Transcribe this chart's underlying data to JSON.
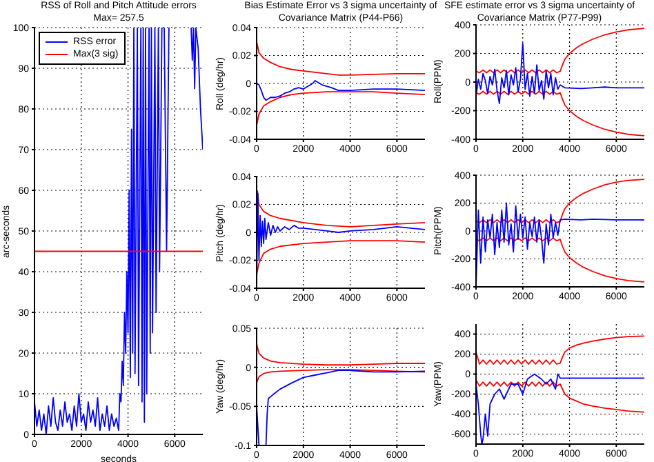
{
  "chart_data": [
    {
      "type": "line",
      "title": "RSS of Roll and Pitch Attitude errors",
      "subtitle": "Max= 257.5",
      "xlabel": "seconds",
      "ylabel": "arc-seconds",
      "xlim": [
        0,
        7200
      ],
      "xticks": [
        0,
        2000,
        4000,
        6000
      ],
      "ylim": [
        0,
        100
      ],
      "yticks": [
        0,
        10,
        20,
        30,
        40,
        50,
        60,
        70,
        80,
        90,
        100
      ],
      "grid": true,
      "legend": "top left",
      "series": [
        {
          "name": "RSS error",
          "color": "#0000ff",
          "x": [
            0,
            100,
            200,
            300,
            400,
            500,
            600,
            700,
            800,
            900,
            1000,
            1100,
            1200,
            1300,
            1400,
            1500,
            1600,
            1700,
            1800,
            1900,
            2000,
            2100,
            2200,
            2300,
            2400,
            2500,
            2600,
            2700,
            2800,
            2900,
            3000,
            3100,
            3200,
            3300,
            3400,
            3500,
            3600,
            3650,
            3700,
            3750,
            3800,
            3850,
            3900,
            3950,
            4000,
            4050,
            4100,
            4150,
            4200,
            4250,
            4300,
            4400,
            4450,
            4550,
            4600,
            4650,
            4700,
            4750,
            4800,
            4900,
            4950,
            5000,
            5050,
            5150,
            5200,
            5300,
            5350,
            5450,
            5550,
            5650,
            5750,
            5800,
            6650,
            6700,
            6750,
            6800,
            6850,
            6900,
            7000,
            7100,
            7200
          ],
          "values": [
            8,
            2,
            6,
            1,
            5,
            0,
            7,
            2,
            9,
            3,
            1,
            6,
            2,
            8,
            3,
            5,
            1,
            7,
            2,
            10,
            3,
            5,
            1,
            8,
            3,
            6,
            2,
            9,
            1,
            5,
            2,
            7,
            1,
            5,
            2,
            4,
            1,
            10,
            8,
            18,
            12,
            30,
            20,
            40,
            25,
            60,
            14,
            75,
            20,
            100,
            15,
            100,
            12,
            100,
            8,
            100,
            3,
            100,
            10,
            100,
            20,
            100,
            25,
            100,
            30,
            100,
            40,
            100,
            100,
            45,
            100,
            100,
            null,
            100,
            92,
            100,
            85,
            100,
            95,
            80,
            70
          ]
        },
        {
          "name": "Max(3 sig)",
          "color": "#ff0000",
          "x": [
            0,
            7200
          ],
          "values": [
            45,
            45
          ]
        }
      ]
    },
    {
      "type": "line",
      "title": "Bias Estimate Error vs 3 sigma uncertainty of Covariance Matrix (P44-P66)",
      "ylabel": "Roll (deg/hr)",
      "xlim": [
        0,
        7200
      ],
      "xticks": [
        0,
        2000,
        4000,
        6000
      ],
      "ylim": [
        -0.04,
        0.04
      ],
      "yticks": [
        -0.04,
        -0.02,
        0,
        0.02,
        0.04
      ],
      "grid": true,
      "series": [
        {
          "color": "#ff0000",
          "x": [
            0,
            100,
            300,
            600,
            1000,
            1500,
            2000,
            2500,
            3000,
            3500,
            4000,
            5000,
            6000,
            7200
          ],
          "values": [
            0.03,
            0.022,
            0.018,
            0.015,
            0.012,
            0.01,
            0.009,
            0.008,
            0.007,
            0.006,
            0.006,
            0.0065,
            0.007,
            0.007
          ]
        },
        {
          "color": "#ff0000",
          "x": [
            0,
            100,
            300,
            600,
            1000,
            1500,
            2000,
            3000,
            4000,
            5000,
            6000,
            7200
          ],
          "values": [
            -0.03,
            -0.022,
            -0.016,
            -0.013,
            -0.01,
            -0.008,
            -0.007,
            -0.006,
            -0.006,
            -0.006,
            -0.007,
            -0.008
          ]
        },
        {
          "color": "#0000ff",
          "x": [
            0,
            100,
            200,
            300,
            400,
            500,
            600,
            800,
            1000,
            1200,
            1400,
            1600,
            1800,
            2000,
            2200,
            2400,
            2500,
            2600,
            2800,
            3000,
            3200,
            3500,
            4000,
            5000,
            6000,
            7200
          ],
          "values": [
            0,
            -0.001,
            -0.005,
            -0.01,
            -0.012,
            -0.011,
            -0.01,
            -0.01,
            -0.009,
            -0.007,
            -0.006,
            -0.004,
            -0.003,
            -0.004,
            -0.002,
            0,
            0.002,
            0.001,
            -0.001,
            -0.002,
            -0.003,
            -0.005,
            -0.005,
            -0.004,
            -0.004,
            -0.005
          ]
        }
      ]
    },
    {
      "type": "line",
      "ylabel": "Pitch (deg/hr)",
      "xlim": [
        0,
        7200
      ],
      "xticks": [
        0,
        2000,
        4000,
        6000
      ],
      "ylim": [
        -0.04,
        0.04
      ],
      "yticks": [
        -0.04,
        -0.02,
        0,
        0.02,
        0.04
      ],
      "grid": true,
      "series": [
        {
          "color": "#ff0000",
          "x": [
            30,
            100,
            300,
            600,
            1000,
            2000,
            3000,
            4000,
            5000,
            6000,
            7200
          ],
          "values": [
            0.03,
            0.02,
            0.015,
            0.012,
            0.01,
            0.007,
            0.005,
            0.004,
            0.005,
            0.006,
            0.007
          ]
        },
        {
          "color": "#ff0000",
          "x": [
            0,
            100,
            300,
            600,
            1000,
            2000,
            3000,
            4000,
            5000,
            6000,
            7200
          ],
          "values": [
            -0.03,
            -0.022,
            -0.015,
            -0.012,
            -0.01,
            -0.008,
            -0.007,
            -0.006,
            -0.006,
            -0.006,
            -0.007
          ]
        },
        {
          "color": "#0000ff",
          "x": [
            0,
            50,
            100,
            150,
            200,
            250,
            300,
            350,
            400,
            500,
            600,
            700,
            800,
            900,
            1000,
            1200,
            1400,
            1600,
            1800,
            2000,
            2500,
            3000,
            3500,
            4000,
            5000,
            6000,
            7200
          ],
          "values": [
            -0.04,
            0.028,
            -0.02,
            0.012,
            -0.01,
            0.008,
            -0.008,
            0.01,
            -0.005,
            0.007,
            -0.002,
            0.005,
            0,
            0.004,
            0.001,
            0.004,
            0.002,
            0.005,
            0.003,
            0.003,
            0.002,
            0.001,
            0,
            0.001,
            0.002,
            0.004,
            0.002
          ]
        }
      ]
    },
    {
      "type": "line",
      "ylabel": "Yaw (deg/hr)",
      "xlim": [
        0,
        7200
      ],
      "xticks": [
        0,
        2000,
        4000,
        6000
      ],
      "ylim": [
        -0.1,
        0.05
      ],
      "yticks": [
        -0.1,
        -0.05,
        0,
        0.05
      ],
      "grid": true,
      "series": [
        {
          "color": "#ff0000",
          "x": [
            0,
            100,
            300,
            600,
            1000,
            2000,
            3000,
            4000,
            5000,
            6000,
            7200
          ],
          "values": [
            0.03,
            0.018,
            0.012,
            0.008,
            0.006,
            0.004,
            0.003,
            0.003,
            0.004,
            0.005,
            0.005
          ]
        },
        {
          "color": "#ff0000",
          "x": [
            0,
            100,
            300,
            600,
            1000,
            2000,
            3000,
            4000,
            5000,
            6000,
            7200
          ],
          "values": [
            -0.02,
            -0.012,
            -0.008,
            -0.006,
            -0.005,
            -0.004,
            -0.003,
            -0.003,
            -0.004,
            -0.005,
            -0.006
          ]
        },
        {
          "color": "#0000ff",
          "x": [
            0,
            100,
            300,
            400,
            450,
            500,
            700,
            1000,
            1500,
            2000,
            2500,
            3000,
            3500,
            4000,
            5000,
            6000,
            7200
          ],
          "values": [
            -0.05,
            -0.1,
            -0.1,
            -0.1,
            -0.06,
            -0.04,
            -0.035,
            -0.028,
            -0.02,
            -0.013,
            -0.01,
            -0.007,
            -0.004,
            -0.004,
            -0.006,
            -0.006,
            -0.005
          ]
        }
      ]
    },
    {
      "type": "line",
      "title": "SFE estimate error vs 3 sigma uncertainty of Covariance Matrix (P77-P99)",
      "ylabel": "Roll(PPM)",
      "xlim": [
        0,
        7200
      ],
      "xticks": [
        0,
        2000,
        4000,
        6000
      ],
      "ylim": [
        -400,
        400
      ],
      "yticks": [
        -400,
        -200,
        0,
        200,
        400
      ],
      "grid": true,
      "series": [
        {
          "color": "#ff0000",
          "x": [
            0,
            150,
            300,
            450,
            600,
            750,
            900,
            1050,
            1200,
            1350,
            1500,
            1650,
            1800,
            1950,
            2100,
            2250,
            2400,
            2550,
            2700,
            2850,
            3000,
            3150,
            3300,
            3450,
            3600,
            3700,
            3800,
            4000,
            4300,
            4600,
            5000,
            5500,
            6000,
            6500,
            7200
          ],
          "values": [
            75,
            65,
            85,
            65,
            85,
            65,
            85,
            65,
            85,
            65,
            85,
            65,
            85,
            65,
            85,
            65,
            85,
            65,
            85,
            65,
            85,
            65,
            85,
            65,
            75,
            120,
            160,
            200,
            240,
            270,
            300,
            330,
            350,
            365,
            375
          ]
        },
        {
          "color": "#ff0000",
          "x": [
            0,
            150,
            300,
            450,
            600,
            750,
            900,
            1050,
            1200,
            1350,
            1500,
            1650,
            1800,
            1950,
            2100,
            2250,
            2400,
            2550,
            2700,
            2850,
            3000,
            3150,
            3300,
            3450,
            3600,
            3700,
            3800,
            4000,
            4300,
            4600,
            5000,
            5500,
            6000,
            6500,
            7200
          ],
          "values": [
            -75,
            -85,
            -65,
            -85,
            -65,
            -85,
            -65,
            -85,
            -65,
            -85,
            -65,
            -85,
            -65,
            -85,
            -65,
            -85,
            -65,
            -85,
            -65,
            -85,
            -65,
            -85,
            -65,
            -85,
            -75,
            -120,
            -160,
            -200,
            -240,
            -270,
            -300,
            -330,
            -350,
            -365,
            -375
          ]
        },
        {
          "color": "#0000ff",
          "x": [
            0,
            100,
            200,
            300,
            400,
            500,
            600,
            700,
            800,
            900,
            1000,
            1100,
            1200,
            1300,
            1400,
            1500,
            1600,
            1700,
            1800,
            1900,
            2000,
            2100,
            2200,
            2300,
            2400,
            2500,
            2600,
            2700,
            2800,
            2900,
            3000,
            3100,
            3200,
            3300,
            3400,
            3500,
            3600,
            3800,
            4500,
            5000,
            5500,
            6000,
            7200
          ],
          "values": [
            -100,
            20,
            -50,
            60,
            10,
            -80,
            40,
            -20,
            90,
            -60,
            -150,
            30,
            -40,
            80,
            -90,
            50,
            -20,
            100,
            -70,
            20,
            270,
            -50,
            60,
            -100,
            40,
            -80,
            120,
            -60,
            10,
            -120,
            80,
            -40,
            60,
            -90,
            30,
            -50,
            -20,
            -40,
            -45,
            -40,
            -35,
            -40,
            -40
          ]
        }
      ]
    },
    {
      "type": "line",
      "ylabel": "Pitch(PPM)",
      "xlim": [
        0,
        7200
      ],
      "xticks": [
        0,
        2000,
        4000,
        6000
      ],
      "ylim": [
        -400,
        400
      ],
      "yticks": [
        -400,
        -200,
        0,
        200,
        400
      ],
      "grid": true,
      "series": [
        {
          "color": "#ff0000",
          "x": [
            0,
            150,
            300,
            450,
            600,
            750,
            900,
            1050,
            1200,
            1350,
            1500,
            1650,
            1800,
            1950,
            2100,
            2250,
            2400,
            2550,
            2700,
            2850,
            3000,
            3150,
            3300,
            3450,
            3600,
            3700,
            3800,
            4000,
            4300,
            4600,
            5000,
            5500,
            6000,
            6500,
            7200
          ],
          "values": [
            70,
            60,
            80,
            60,
            80,
            60,
            80,
            60,
            80,
            60,
            80,
            60,
            80,
            60,
            80,
            60,
            80,
            60,
            80,
            60,
            80,
            60,
            80,
            60,
            70,
            120,
            160,
            200,
            240,
            270,
            300,
            330,
            350,
            362,
            370
          ]
        },
        {
          "color": "#ff0000",
          "x": [
            0,
            150,
            300,
            450,
            600,
            750,
            900,
            1050,
            1200,
            1350,
            1500,
            1650,
            1800,
            1950,
            2100,
            2250,
            2400,
            2550,
            2700,
            2850,
            3000,
            3150,
            3300,
            3450,
            3600,
            3700,
            3800,
            4000,
            4300,
            4600,
            5000,
            5500,
            6000,
            6500,
            7200
          ],
          "values": [
            -60,
            -70,
            -50,
            -70,
            -50,
            -70,
            -50,
            -70,
            -50,
            -70,
            -50,
            -70,
            -50,
            -70,
            -50,
            -70,
            -50,
            -70,
            -50,
            -70,
            -50,
            -70,
            -50,
            -70,
            -60,
            -110,
            -150,
            -190,
            -230,
            -260,
            -290,
            -320,
            -340,
            -355,
            -365
          ]
        },
        {
          "color": "#0000ff",
          "x": [
            0,
            100,
            200,
            300,
            400,
            500,
            600,
            700,
            800,
            900,
            1000,
            1100,
            1200,
            1300,
            1400,
            1500,
            1600,
            1700,
            1800,
            1900,
            2000,
            2100,
            2200,
            2300,
            2400,
            2500,
            2600,
            2700,
            2800,
            2900,
            3000,
            3100,
            3200,
            3300,
            3400,
            3500,
            3600,
            3800,
            4500,
            5000,
            6000,
            7200
          ],
          "values": [
            -400,
            150,
            -230,
            100,
            -150,
            80,
            -50,
            120,
            -170,
            60,
            -120,
            150,
            -80,
            200,
            -100,
            50,
            -150,
            180,
            -60,
            120,
            -50,
            100,
            -130,
            60,
            -40,
            100,
            -80,
            80,
            -50,
            -230,
            50,
            -100,
            120,
            -50,
            60,
            -30,
            80,
            85,
            80,
            85,
            80,
            80
          ]
        }
      ]
    },
    {
      "type": "line",
      "ylabel": "Yaw(PPM)",
      "xlim": [
        0,
        7200
      ],
      "xticks": [
        0,
        2000,
        4000,
        6000
      ],
      "ylim": [
        -700,
        500
      ],
      "yticks": [
        -600,
        -400,
        -200,
        0,
        200,
        400
      ],
      "grid": true,
      "series": [
        {
          "color": "#ff0000",
          "x": [
            0,
            150,
            300,
            450,
            600,
            750,
            900,
            1050,
            1200,
            1350,
            1500,
            1650,
            1800,
            1950,
            2100,
            2250,
            2400,
            2550,
            2700,
            2850,
            3000,
            3150,
            3300,
            3450,
            3600,
            3700,
            3800,
            4000,
            4300,
            4600,
            5000,
            5500,
            6000,
            6500,
            7200
          ],
          "values": [
            220,
            100,
            140,
            100,
            140,
            100,
            140,
            100,
            140,
            100,
            140,
            100,
            140,
            100,
            140,
            100,
            140,
            100,
            140,
            100,
            140,
            100,
            140,
            100,
            110,
            170,
            220,
            260,
            290,
            310,
            330,
            350,
            365,
            375,
            380
          ]
        },
        {
          "color": "#ff0000",
          "x": [
            0,
            150,
            300,
            450,
            600,
            750,
            900,
            1050,
            1200,
            1350,
            1500,
            1650,
            1800,
            1950,
            2100,
            2250,
            2400,
            2550,
            2700,
            2850,
            3000,
            3150,
            3300,
            3450,
            3600,
            3700,
            3800,
            4000,
            4300,
            4600,
            5000,
            5500,
            6000,
            6500,
            7200
          ],
          "values": [
            -60,
            -120,
            -80,
            -120,
            -80,
            -120,
            -80,
            -120,
            -80,
            -120,
            -80,
            -120,
            -80,
            -120,
            -80,
            -120,
            -80,
            -120,
            -80,
            -120,
            -80,
            -120,
            -80,
            -120,
            -100,
            -150,
            -200,
            -240,
            -270,
            -300,
            -320,
            -340,
            -355,
            -370,
            -380
          ]
        },
        {
          "color": "#0000ff",
          "x": [
            0,
            100,
            200,
            250,
            300,
            400,
            500,
            600,
            800,
            1000,
            1200,
            1500,
            1800,
            2000,
            2200,
            2500,
            2800,
            3000,
            3200,
            3400,
            3500,
            3600,
            7200
          ],
          "values": [
            -100,
            -300,
            -600,
            -700,
            -650,
            -400,
            -620,
            -300,
            -200,
            -150,
            -250,
            -100,
            -100,
            -200,
            -50,
            0,
            -50,
            -100,
            -50,
            -150,
            0,
            -40,
            -40
          ]
        }
      ]
    }
  ]
}
